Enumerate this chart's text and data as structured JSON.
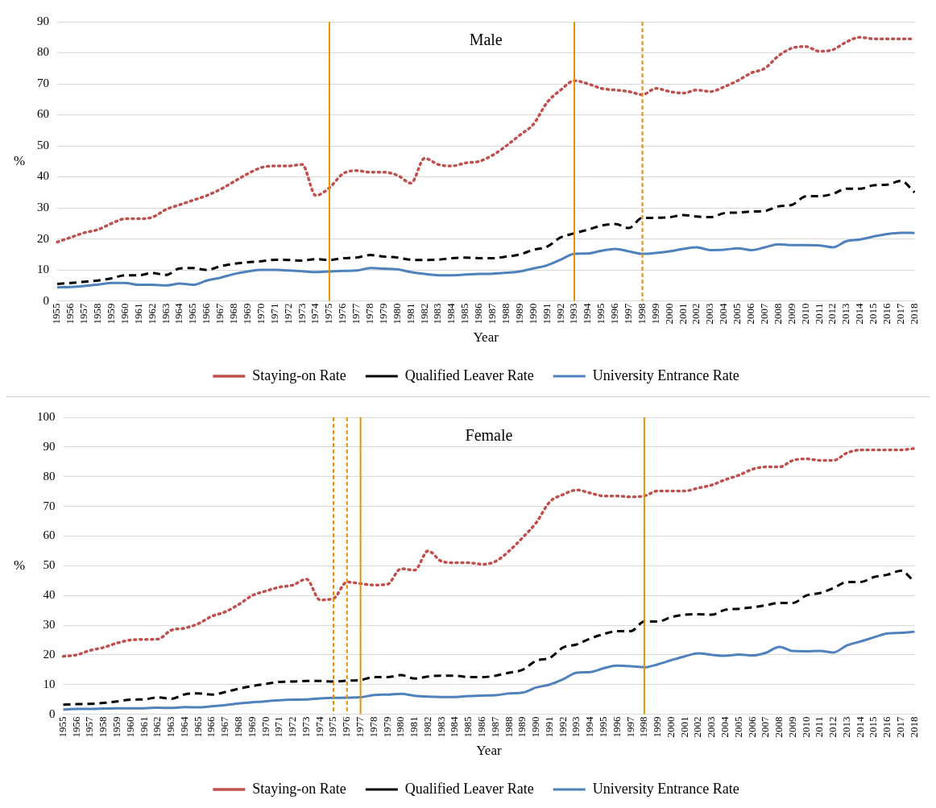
{
  "chart_data": [
    {
      "type": "line",
      "title": "Male",
      "xlabel": "Year",
      "ylabel": "%",
      "ylim": [
        0,
        90
      ],
      "yticks": [
        0,
        10,
        20,
        30,
        40,
        50,
        60,
        70,
        80,
        90
      ],
      "grid": "y",
      "legend": "bottom",
      "marker": "none",
      "categories": [
        "1955",
        "1956",
        "1957",
        "1958",
        "1959",
        "1960",
        "1961",
        "1962",
        "1963",
        "1964",
        "1965",
        "1966",
        "1967",
        "1968",
        "1969",
        "1970",
        "1971",
        "1972",
        "1973",
        "1974",
        "1975",
        "1976",
        "1977",
        "1978",
        "1979",
        "1980",
        "1981",
        "1982",
        "1983",
        "1984",
        "1985",
        "1986",
        "1987",
        "1988",
        "1989",
        "1990",
        "1991",
        "1992",
        "1993",
        "1994",
        "1995",
        "1996",
        "1997",
        "1998",
        "1999",
        "2000",
        "2001",
        "2002",
        "2003",
        "2004",
        "2005",
        "2006",
        "2007",
        "2008",
        "2009",
        "2010",
        "2011",
        "2012",
        "2013",
        "2014",
        "2015",
        "2016",
        "2017",
        "2018"
      ],
      "series": [
        {
          "name": "Staying-on Rate",
          "color": "#c0504d",
          "line_style": "dotted",
          "values": [
            19,
            20.5,
            22,
            23,
            25,
            26.5,
            26.5,
            27,
            29.5,
            31,
            32.5,
            34,
            36,
            38.5,
            41,
            43,
            43.5,
            43.5,
            44,
            34,
            36.5,
            41,
            42,
            41.5,
            41.5,
            40.5,
            38,
            46,
            44,
            43.5,
            44.5,
            45,
            47,
            50,
            53.5,
            57,
            64,
            68,
            71,
            70,
            68.5,
            68,
            67.5,
            66.5,
            68.5,
            67.5,
            67,
            68,
            67.5,
            69,
            71,
            73.5,
            75,
            79,
            81.5,
            82,
            80.5,
            81,
            83.5,
            85,
            84.5,
            84.5,
            84.5,
            84.5
          ]
        },
        {
          "name": "Qualified Leaver Rate",
          "color": "#000000",
          "line_style": "dashed",
          "values": [
            5.5,
            5.8,
            6.2,
            6.6,
            7.3,
            8.3,
            8.3,
            9,
            8.4,
            10.5,
            10.6,
            10,
            11.2,
            12,
            12.5,
            12.8,
            13.3,
            13.2,
            13,
            13.5,
            13.2,
            13.8,
            14,
            14.8,
            14.3,
            14,
            13.3,
            13.2,
            13.3,
            13.8,
            14,
            13.8,
            13.8,
            14.3,
            15,
            16.5,
            17.5,
            20.5,
            21.8,
            23,
            24.3,
            24.8,
            23.5,
            26.8,
            26.8,
            27,
            27.7,
            27.2,
            27,
            28.3,
            28.5,
            28.8,
            29,
            30.5,
            31,
            33.7,
            33.8,
            34.5,
            36.2,
            36.2,
            37.3,
            37.5,
            38.7,
            35
          ]
        },
        {
          "name": "University Entrance Rate",
          "color": "#4f81bd",
          "line_style": "solid",
          "values": [
            4.4,
            4.5,
            4.8,
            5.3,
            5.8,
            5.8,
            5.2,
            5.2,
            5,
            5.6,
            5.2,
            6.6,
            7.5,
            8.7,
            9.5,
            10,
            10,
            9.8,
            9.6,
            9.3,
            9.5,
            9.7,
            9.8,
            10.6,
            10.4,
            10.2,
            9.3,
            8.7,
            8.3,
            8.3,
            8.5,
            8.7,
            8.8,
            9.1,
            9.5,
            10.5,
            11.5,
            13.3,
            15.2,
            15.3,
            16.2,
            16.8,
            16,
            15.2,
            15.5,
            16,
            16.8,
            17.3,
            16.4,
            16.5,
            17,
            16.4,
            17.3,
            18.3,
            18,
            18,
            17.9,
            17.3,
            19.3,
            19.8,
            20.8,
            21.6,
            22,
            21.9
          ]
        }
      ],
      "ref_lines": [
        {
          "axis": "x",
          "value": "1975",
          "color": "#e69100",
          "line_style": "solid"
        },
        {
          "axis": "x",
          "value": "1993",
          "color": "#e69100",
          "line_style": "solid"
        },
        {
          "axis": "x",
          "value": "1998",
          "color": "#e69100",
          "line_style": "dashed"
        }
      ]
    },
    {
      "type": "line",
      "title": "Female",
      "xlabel": "Year",
      "ylabel": "%",
      "ylim": [
        0,
        100
      ],
      "yticks": [
        0,
        10,
        20,
        30,
        40,
        50,
        60,
        70,
        80,
        90,
        100
      ],
      "grid": "y",
      "legend": "bottom",
      "marker": "none",
      "categories": [
        "1955",
        "1956",
        "1957",
        "1958",
        "1959",
        "1960",
        "1961",
        "1962",
        "1963",
        "1964",
        "1965",
        "1966",
        "1967",
        "1968",
        "1969",
        "1970",
        "1971",
        "1972",
        "1973",
        "1974",
        "1975",
        "1976",
        "1977",
        "1978",
        "1979",
        "1980",
        "1981",
        "1982",
        "1983",
        "1984",
        "1985",
        "1986",
        "1987",
        "1988",
        "1989",
        "1990",
        "1991",
        "1992",
        "1993",
        "1994",
        "1995",
        "1996",
        "1997",
        "1998",
        "1999",
        "2000",
        "2001",
        "2002",
        "2003",
        "2004",
        "2005",
        "2006",
        "2007",
        "2008",
        "2009",
        "2010",
        "2011",
        "2012",
        "2013",
        "2014",
        "2015",
        "2016",
        "2017",
        "2018"
      ],
      "series": [
        {
          "name": "Staying-on Rate",
          "color": "#c0504d",
          "line_style": "dotted",
          "values": [
            19.5,
            20,
            21.5,
            22.5,
            24,
            25,
            25.2,
            25.3,
            28.3,
            29,
            30.5,
            33,
            34.5,
            37,
            40,
            41.5,
            42.8,
            43.5,
            45.5,
            38.5,
            39,
            44.5,
            44,
            43.5,
            43.8,
            49,
            48.5,
            55,
            51.5,
            51,
            51,
            50.5,
            51.5,
            55,
            59.5,
            64.5,
            71.5,
            74,
            75.5,
            74.5,
            73.5,
            73.5,
            73.2,
            73.5,
            75.2,
            75.2,
            75.2,
            76.2,
            77.2,
            79,
            80.5,
            82.5,
            83.3,
            83.3,
            85.5,
            86,
            85.5,
            85.5,
            88,
            89,
            89,
            89,
            89,
            89.5
          ]
        },
        {
          "name": "Qualified Leaver Rate",
          "color": "#000000",
          "line_style": "dashed",
          "values": [
            3.2,
            3.4,
            3.5,
            3.8,
            4.3,
            4.9,
            5,
            5.7,
            5.2,
            6.7,
            7,
            6.6,
            7.5,
            8.6,
            9.5,
            10.2,
            10.9,
            11,
            11.2,
            11.2,
            11,
            11.3,
            11.5,
            12.5,
            12.5,
            13.2,
            12,
            12.7,
            13,
            13,
            12.5,
            12.5,
            13,
            14,
            15,
            18,
            19,
            22.5,
            23.5,
            25.5,
            27,
            28,
            28,
            31.2,
            31.2,
            32.7,
            33.5,
            33.7,
            33.5,
            35.2,
            35.5,
            36,
            36.7,
            37.5,
            37.5,
            40,
            40.8,
            42.5,
            44.5,
            44.5,
            46.2,
            47,
            48.3,
            44.5
          ]
        },
        {
          "name": "University Entrance Rate",
          "color": "#4f81bd",
          "line_style": "solid",
          "values": [
            1.6,
            1.8,
            1.8,
            1.9,
            2,
            2,
            2,
            2.2,
            2.1,
            2.4,
            2.3,
            2.7,
            3.1,
            3.6,
            4,
            4.4,
            4.7,
            4.9,
            5,
            5.3,
            5.5,
            5.6,
            5.7,
            6.5,
            6.6,
            6.9,
            6.2,
            5.9,
            5.8,
            5.8,
            6.1,
            6.3,
            6.4,
            7,
            7.3,
            9,
            10,
            11.8,
            14,
            14.2,
            15.5,
            16.4,
            16.2,
            15.8,
            16.8,
            18.2,
            19.5,
            20.5,
            20,
            19.7,
            20.1,
            19.8,
            20.7,
            22.7,
            21.3,
            21.2,
            21.3,
            20.8,
            23.2,
            24.5,
            25.9,
            27.2,
            27.4,
            27.8
          ]
        }
      ],
      "ref_lines": [
        {
          "axis": "x",
          "value": "1975",
          "color": "#e69100",
          "line_style": "dashed"
        },
        {
          "axis": "x",
          "value": "1976",
          "color": "#e69100",
          "line_style": "dashed"
        },
        {
          "axis": "x",
          "value": "1977",
          "color": "#e69100",
          "line_style": "solid"
        },
        {
          "axis": "x",
          "value": "1998",
          "color": "#e69100",
          "line_style": "solid"
        }
      ]
    }
  ]
}
